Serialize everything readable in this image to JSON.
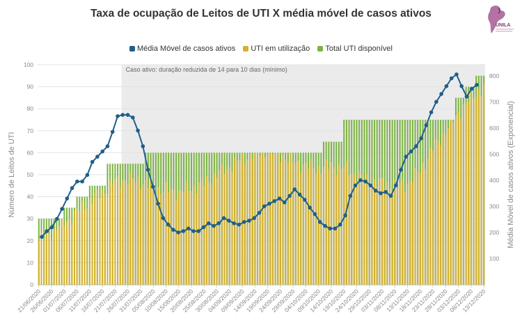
{
  "chart_data": {
    "type": "bar+line",
    "title": "Taxa de ocupação de Leitos de UTI X média móvel de casos ativos",
    "logo_text": "UNILA",
    "legend": [
      {
        "label": "Média Móvel de casos ativos",
        "color": "#1f5f8b"
      },
      {
        "label": "UTI em utilização",
        "color": "#d4b12c"
      },
      {
        "label": "Total UTI disponível",
        "color": "#7cb342"
      }
    ],
    "annotation": "Caso ativo: duração reduzida de 14 para 10 dias (mínimo)",
    "annotation_range": [
      "2020-07-24",
      "2020-12-13"
    ],
    "y_left": {
      "label": "Número de Leitos de UTI",
      "min": 0,
      "max": 100,
      "ticks": [
        0,
        10,
        20,
        30,
        40,
        50,
        60,
        70,
        80,
        90,
        100
      ]
    },
    "y_right": {
      "label": "Média Móvel de casos ativos (Exponencial)",
      "min": 0,
      "max": 842,
      "ticks": [
        100,
        200,
        300,
        400,
        500,
        600,
        700,
        800
      ]
    },
    "x_labels": [
      "21/06/2020",
      "26/06/2020",
      "01/07/2020",
      "06/07/2020",
      "11/07/2020",
      "16/07/2020",
      "21/07/2020",
      "26/07/2020",
      "31/07/2020",
      "05/08/2020",
      "10/08/2020",
      "15/08/2020",
      "20/08/2020",
      "25/08/2020",
      "30/08/2020",
      "04/09/2020",
      "09/09/2020",
      "14/09/2020",
      "19/09/2020",
      "24/09/2020",
      "29/09/2020",
      "04/10/2020",
      "09/10/2020",
      "14/10/2020",
      "19/10/2020",
      "24/10/2020",
      "29/10/2020",
      "03/11/2020",
      "08/11/2020",
      "13/11/2020",
      "18/11/2020",
      "23/11/2020",
      "28/11/2020",
      "03/12/2020",
      "08/12/2020",
      "13/12/2020"
    ],
    "total_uti_disponivel_steps": [
      [
        0,
        30
      ],
      [
        10,
        35
      ],
      [
        15,
        40
      ],
      [
        20,
        45
      ],
      [
        27,
        55
      ],
      [
        42,
        60
      ],
      [
        112,
        65
      ],
      [
        120,
        75
      ],
      [
        164,
        85
      ],
      [
        168,
        90
      ],
      [
        172,
        95
      ],
      [
        180,
        97
      ]
    ],
    "uti_em_utilizacao_knots": [
      [
        0,
        20
      ],
      [
        5,
        24
      ],
      [
        10,
        28
      ],
      [
        15,
        33
      ],
      [
        20,
        38
      ],
      [
        25,
        42
      ],
      [
        30,
        47
      ],
      [
        35,
        48
      ],
      [
        40,
        47
      ],
      [
        45,
        44
      ],
      [
        50,
        43
      ],
      [
        55,
        42
      ],
      [
        60,
        44
      ],
      [
        65,
        46
      ],
      [
        70,
        50
      ],
      [
        75,
        54
      ],
      [
        80,
        57
      ],
      [
        85,
        60
      ],
      [
        90,
        61
      ],
      [
        95,
        59
      ],
      [
        100,
        56
      ],
      [
        105,
        54
      ],
      [
        110,
        53
      ],
      [
        115,
        54
      ],
      [
        120,
        53
      ],
      [
        125,
        50
      ],
      [
        130,
        47
      ],
      [
        135,
        46
      ],
      [
        140,
        45
      ],
      [
        145,
        46
      ],
      [
        150,
        52
      ],
      [
        155,
        62
      ],
      [
        160,
        70
      ],
      [
        165,
        78
      ],
      [
        170,
        85
      ],
      [
        175,
        90
      ],
      [
        180,
        80
      ],
      [
        185,
        76
      ],
      [
        188,
        86
      ]
    ],
    "media_movel_points": [
      [
        0,
        183
      ],
      [
        3,
        205
      ],
      [
        6,
        220
      ],
      [
        9,
        252
      ],
      [
        12,
        290
      ],
      [
        15,
        330
      ],
      [
        18,
        370
      ],
      [
        21,
        395
      ],
      [
        24,
        395
      ],
      [
        27,
        420
      ],
      [
        30,
        470
      ],
      [
        33,
        490
      ],
      [
        36,
        510
      ],
      [
        39,
        530
      ],
      [
        42,
        585
      ],
      [
        45,
        645
      ],
      [
        48,
        650
      ],
      [
        51,
        650
      ],
      [
        54,
        640
      ],
      [
        57,
        590
      ],
      [
        60,
        530
      ],
      [
        63,
        440
      ],
      [
        66,
        375
      ],
      [
        69,
        310
      ],
      [
        72,
        255
      ],
      [
        75,
        230
      ],
      [
        78,
        210
      ],
      [
        81,
        200
      ],
      [
        84,
        205
      ],
      [
        87,
        215
      ],
      [
        90,
        205
      ],
      [
        93,
        205
      ],
      [
        96,
        220
      ],
      [
        99,
        235
      ],
      [
        102,
        225
      ],
      [
        105,
        235
      ],
      [
        108,
        255
      ],
      [
        111,
        245
      ],
      [
        114,
        235
      ],
      [
        117,
        230
      ],
      [
        120,
        240
      ],
      [
        123,
        245
      ],
      [
        126,
        255
      ],
      [
        129,
        275
      ],
      [
        132,
        300
      ],
      [
        135,
        310
      ],
      [
        138,
        320
      ],
      [
        141,
        330
      ],
      [
        144,
        315
      ],
      [
        147,
        340
      ],
      [
        150,
        365
      ],
      [
        153,
        345
      ],
      [
        156,
        325
      ],
      [
        159,
        295
      ],
      [
        162,
        270
      ],
      [
        165,
        240
      ],
      [
        168,
        225
      ],
      [
        171,
        215
      ],
      [
        174,
        215
      ],
      [
        177,
        230
      ],
      [
        180,
        265
      ],
      [
        183,
        340
      ],
      [
        186,
        380
      ],
      [
        189,
        400
      ],
      [
        192,
        395
      ],
      [
        195,
        380
      ],
      [
        198,
        360
      ],
      [
        201,
        350
      ],
      [
        204,
        355
      ],
      [
        207,
        340
      ],
      [
        210,
        380
      ],
      [
        213,
        440
      ],
      [
        216,
        490
      ],
      [
        219,
        510
      ],
      [
        222,
        530
      ],
      [
        225,
        560
      ],
      [
        228,
        610
      ],
      [
        231,
        660
      ],
      [
        234,
        700
      ],
      [
        237,
        730
      ],
      [
        240,
        760
      ],
      [
        243,
        790
      ],
      [
        246,
        805
      ],
      [
        249,
        760
      ],
      [
        252,
        720
      ],
      [
        255,
        750
      ],
      [
        258,
        765
      ]
    ]
  }
}
